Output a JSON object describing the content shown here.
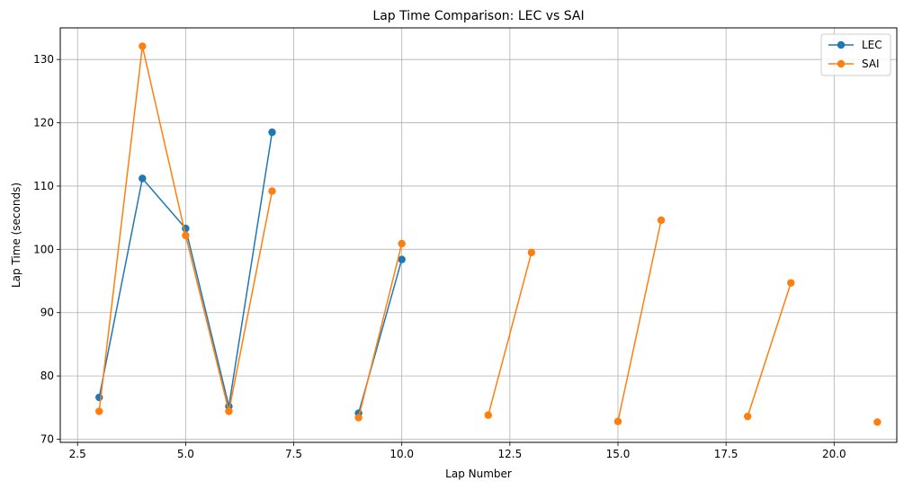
{
  "chart_data": {
    "type": "line",
    "title": "Lap Time Comparison: LEC vs SAI",
    "xlabel": "Lap Number",
    "ylabel": "Lap Time (seconds)",
    "xlim": [
      2.1,
      21.45
    ],
    "ylim": [
      69.5,
      135
    ],
    "xticks": [
      2.5,
      5.0,
      7.5,
      10.0,
      12.5,
      15.0,
      17.5,
      20.0
    ],
    "xtick_labels": [
      "2.5",
      "5.0",
      "7.5",
      "10.0",
      "12.5",
      "15.0",
      "17.5",
      "20.0"
    ],
    "yticks": [
      70,
      80,
      90,
      100,
      110,
      120,
      130
    ],
    "ytick_labels": [
      "70",
      "80",
      "90",
      "100",
      "110",
      "120",
      "130"
    ],
    "grid": true,
    "legend_position": "top-right",
    "series": [
      {
        "name": "LEC",
        "color": "#1f77b4",
        "x": [
          3,
          4,
          5,
          6,
          7,
          null,
          9,
          10
        ],
        "y": [
          76.6,
          111.2,
          103.3,
          75.2,
          118.5,
          null,
          74.1,
          98.4
        ]
      },
      {
        "name": "SAI",
        "color": "#ff7f0e",
        "x": [
          3,
          4,
          5,
          6,
          7,
          null,
          9,
          10,
          null,
          12,
          13,
          null,
          15,
          16,
          null,
          18,
          19,
          null,
          21
        ],
        "y": [
          74.4,
          132.1,
          102.2,
          74.4,
          109.2,
          null,
          73.4,
          100.9,
          null,
          73.8,
          99.5,
          null,
          72.8,
          104.6,
          null,
          73.6,
          94.7,
          null,
          72.7
        ]
      }
    ]
  }
}
